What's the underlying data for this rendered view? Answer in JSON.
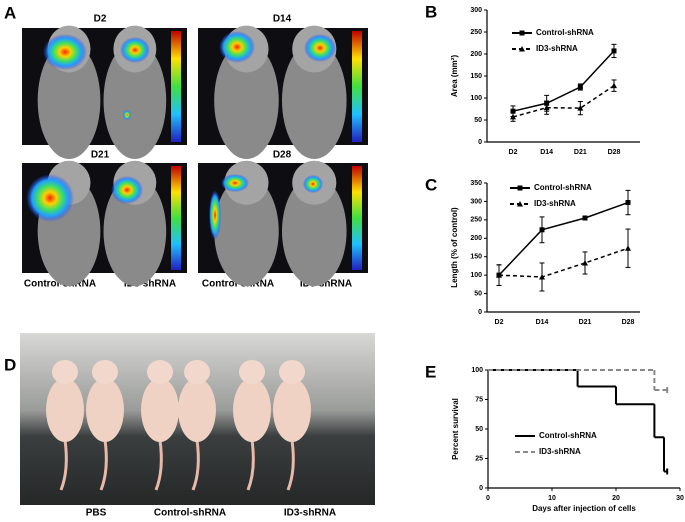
{
  "panel_a": {
    "letter": "A",
    "timepoints": [
      "D2",
      "D14",
      "D21",
      "D28"
    ],
    "group_labels": [
      "Control-shRNA",
      "ID3-shRNA",
      "Control-shRNA",
      "ID3-shRNA"
    ]
  },
  "panel_d": {
    "letter": "D",
    "group_labels": [
      "PBS",
      "Control-shRNA",
      "ID3-shRNA"
    ]
  },
  "chart_data": [
    {
      "type": "line",
      "panel": "B",
      "y_label": "Area (mm²)",
      "categories": [
        "D2",
        "D14",
        "D21",
        "D28"
      ],
      "ylim": [
        0,
        300
      ],
      "yticks": [
        0,
        50,
        100,
        150,
        200,
        250,
        300
      ],
      "series": [
        {
          "name": "Control-shRNA",
          "color": "#000000",
          "line_style": "solid",
          "marker": "square",
          "values": [
            70,
            88,
            125,
            207
          ],
          "errors": [
            12,
            18,
            7,
            15
          ]
        },
        {
          "name": "ID3-shRNA",
          "color": "#000000",
          "line_style": "dashed",
          "marker": "triangle",
          "values": [
            57,
            78,
            77,
            128
          ],
          "errors": [
            10,
            15,
            15,
            13
          ]
        }
      ]
    },
    {
      "type": "line",
      "panel": "C",
      "y_label": "Length (% of control)",
      "categories": [
        "D2",
        "D14",
        "D21",
        "D28"
      ],
      "ylim": [
        0,
        350
      ],
      "yticks": [
        0,
        50,
        100,
        150,
        200,
        250,
        300,
        350
      ],
      "series": [
        {
          "name": "Control-shRNA",
          "color": "#000000",
          "line_style": "solid",
          "marker": "square",
          "values": [
            100,
            223,
            255,
            297
          ],
          "errors": [
            28,
            35,
            5,
            33
          ]
        },
        {
          "name": "ID3-shRNA",
          "color": "#000000",
          "line_style": "dashed",
          "marker": "triangle",
          "values": [
            100,
            95,
            133,
            173
          ],
          "errors": [
            28,
            38,
            30,
            52
          ]
        }
      ]
    },
    {
      "type": "step",
      "panel": "E",
      "x_label": "Days after injection of cells",
      "y_label": "Percent survival",
      "xlim": [
        0,
        30
      ],
      "xticks": [
        0,
        10,
        20,
        30
      ],
      "ylim": [
        0,
        100
      ],
      "yticks": [
        0,
        25,
        50,
        75,
        100
      ],
      "series": [
        {
          "name": "Control-shRNA",
          "color": "#000000",
          "line_style": "solid",
          "x": [
            0,
            14,
            20,
            26,
            27.5,
            28
          ],
          "values": [
            100,
            86,
            71,
            43,
            14,
            14
          ]
        },
        {
          "name": "ID3-shRNA",
          "color": "#888888",
          "line_style": "dashed",
          "x": [
            0,
            26,
            28
          ],
          "values": [
            100,
            83,
            83
          ]
        }
      ]
    }
  ]
}
